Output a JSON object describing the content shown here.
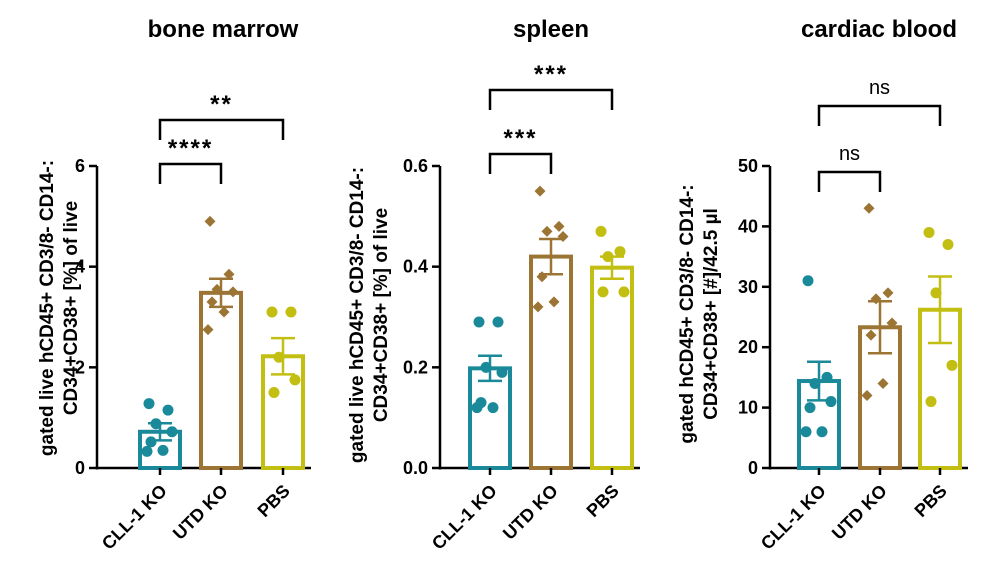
{
  "colors": {
    "CLL-1 KO": "#1a8a9a",
    "UTD KO": "#9c7433",
    "PBS": "#c2bf12",
    "axis": "#000000"
  },
  "chart_data": [
    {
      "type": "bar",
      "title": "bone marrow",
      "ylabel_lines": [
        "gated live hCD45+ CD3/8- CD14-:",
        "CD34+CD38+ [%] of live"
      ],
      "categories": [
        "CLL-1 KO",
        "UTD KO",
        "PBS"
      ],
      "ylim": [
        0,
        6
      ],
      "yticks": [
        0,
        2,
        4,
        6
      ],
      "ytick_labels": [
        "0",
        "2",
        "4",
        "6"
      ],
      "error_bar": "SEM",
      "series": [
        {
          "category": "CLL-1 KO",
          "mean": 0.72,
          "sem": 0.17,
          "marker": "circle",
          "points": [
            1.28,
            1.15,
            0.88,
            0.72,
            0.52,
            0.35,
            0.33
          ]
        },
        {
          "category": "UTD KO",
          "mean": 3.48,
          "sem": 0.28,
          "marker": "diamond",
          "points": [
            4.9,
            3.85,
            3.55,
            3.5,
            3.3,
            3.1,
            2.75
          ]
        },
        {
          "category": "PBS",
          "mean": 2.22,
          "sem": 0.36,
          "marker": "circle",
          "points": [
            3.1,
            3.1,
            2.2,
            1.75,
            1.5
          ]
        }
      ],
      "significance": [
        {
          "from": 0,
          "to": 1,
          "label": "****"
        },
        {
          "from": 0,
          "to": 2,
          "label": "**"
        }
      ]
    },
    {
      "type": "bar",
      "title": "spleen",
      "ylabel_lines": [
        "gated live hCD45+ CD3/8- CD14-:",
        "CD34+CD38+ [%] of live"
      ],
      "categories": [
        "CLL-1 KO",
        "UTD KO",
        "PBS"
      ],
      "ylim": [
        0,
        0.6
      ],
      "yticks": [
        0,
        0.2,
        0.4,
        0.6
      ],
      "ytick_labels": [
        "0.0",
        "0.2",
        "0.4",
        "0.6"
      ],
      "error_bar": "SEM",
      "series": [
        {
          "category": "CLL-1 KO",
          "mean": 0.198,
          "sem": 0.025,
          "marker": "circle",
          "points": [
            0.29,
            0.29,
            0.2,
            0.19,
            0.13,
            0.12,
            0.12
          ]
        },
        {
          "category": "UTD KO",
          "mean": 0.42,
          "sem": 0.035,
          "marker": "diamond",
          "points": [
            0.55,
            0.48,
            0.47,
            0.46,
            0.38,
            0.33,
            0.32
          ]
        },
        {
          "category": "PBS",
          "mean": 0.398,
          "sem": 0.022,
          "marker": "circle",
          "points": [
            0.47,
            0.43,
            0.42,
            0.35,
            0.35
          ]
        }
      ],
      "significance": [
        {
          "from": 0,
          "to": 1,
          "label": "***"
        },
        {
          "from": 0,
          "to": 2,
          "label": "***"
        }
      ]
    },
    {
      "type": "bar",
      "title": "cardiac blood",
      "ylabel_lines": [
        "gated hCD45+ CD3/8- CD14-:",
        "CD34+CD38+ [#]/42.5 µl"
      ],
      "categories": [
        "CLL-1 KO",
        "UTD KO",
        "PBS"
      ],
      "ylim": [
        0,
        50
      ],
      "yticks": [
        0,
        10,
        20,
        30,
        40,
        50
      ],
      "ytick_labels": [
        "0",
        "10",
        "20",
        "30",
        "40",
        "50"
      ],
      "error_bar": "SEM",
      "series": [
        {
          "category": "CLL-1 KO",
          "mean": 14.4,
          "sem": 3.2,
          "marker": "circle",
          "points": [
            31,
            15,
            14,
            11,
            10,
            6,
            6
          ]
        },
        {
          "category": "UTD KO",
          "mean": 23.3,
          "sem": 4.3,
          "marker": "diamond",
          "points": [
            43,
            29,
            28,
            24,
            22,
            14,
            12
          ]
        },
        {
          "category": "PBS",
          "mean": 26.2,
          "sem": 5.5,
          "marker": "circle",
          "points": [
            39,
            37,
            29,
            17,
            11
          ]
        }
      ],
      "significance": [
        {
          "from": 0,
          "to": 1,
          "label": "ns"
        },
        {
          "from": 0,
          "to": 2,
          "label": "ns"
        }
      ]
    }
  ]
}
